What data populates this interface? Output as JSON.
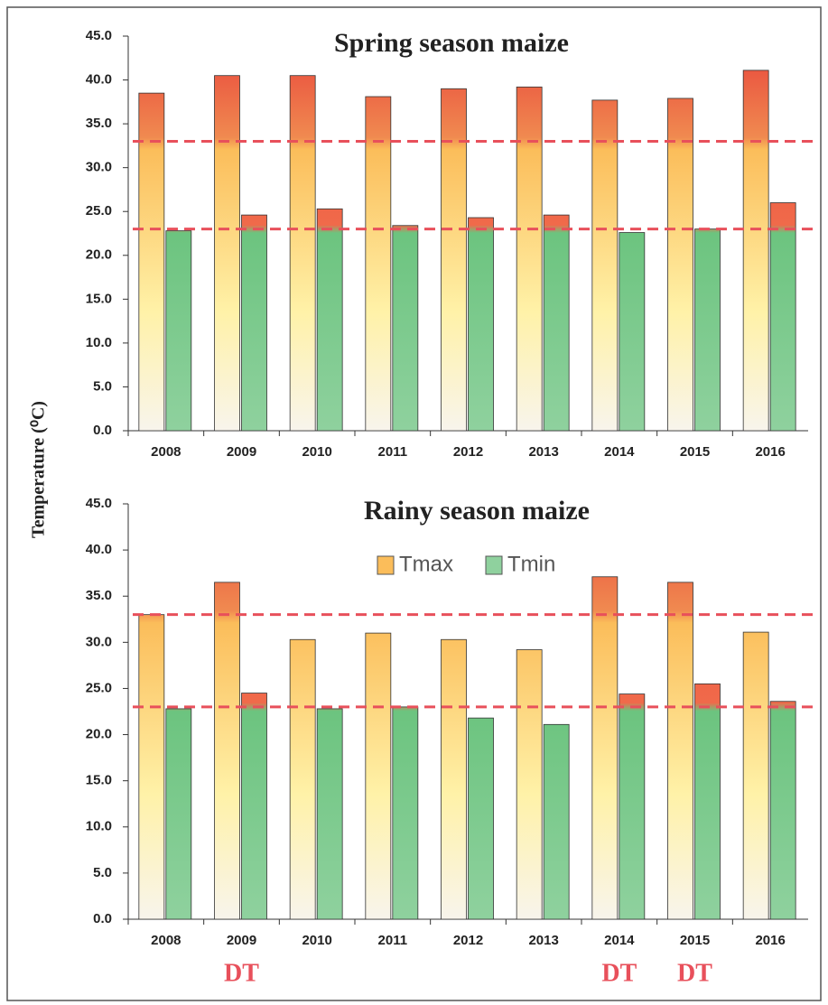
{
  "chart_data": [
    {
      "type": "bar",
      "title": "Spring  season maize",
      "ylabel": "Temperature  (⁰C)",
      "categories": [
        "2008",
        "2009",
        "2010",
        "2011",
        "2012",
        "2013",
        "2014",
        "2015",
        "2016"
      ],
      "series": [
        {
          "color": "#f9b84f",
          "values": [
            38.5,
            40.5,
            40.5,
            38.1,
            39.0,
            39.2,
            37.7,
            37.9,
            41.1
          ]
        },
        {
          "color": "#8fd19e",
          "values": [
            22.8,
            24.6,
            25.3,
            23.4,
            24.3,
            24.6,
            22.6,
            23.0,
            26.0
          ]
        }
      ],
      "ylim": [
        0,
        45
      ],
      "yticks": [
        {
          "value": 0,
          "label": "0.0"
        },
        {
          "value": 5,
          "label": "5.0"
        },
        {
          "value": 10,
          "label": "10.0"
        },
        {
          "value": 15,
          "label": "15.0"
        },
        {
          "value": 20,
          "label": "20.0"
        },
        {
          "value": 25,
          "label": "25.0"
        },
        {
          "value": 30,
          "label": "30.0"
        },
        {
          "value": 35,
          "label": "35.0"
        },
        {
          "value": 40,
          "label": "40.0"
        },
        {
          "value": 45,
          "label": "45.0"
        }
      ],
      "reference_lines": [
        33,
        23
      ],
      "reference_color": "#e8505b",
      "legend": false
    },
    {
      "type": "bar",
      "title": "Rainy  season maize",
      "categories": [
        "2008",
        "2009",
        "2010",
        "2011",
        "2012",
        "2013",
        "2014",
        "2015",
        "2016"
      ],
      "series": [
        {
          "name": "Tmax",
          "color": "#f9b84f",
          "values": [
            33.0,
            36.5,
            30.3,
            31.0,
            30.3,
            29.2,
            37.1,
            36.5,
            31.1
          ]
        },
        {
          "name": "Tmin",
          "color": "#8fd19e",
          "values": [
            22.8,
            24.5,
            22.8,
            23.0,
            21.8,
            21.1,
            24.4,
            25.5,
            23.6
          ]
        }
      ],
      "ylim": [
        0,
        45
      ],
      "yticks": [
        {
          "value": 0,
          "label": "0.0"
        },
        {
          "value": 5,
          "label": "5.0"
        },
        {
          "value": 10,
          "label": "10.0"
        },
        {
          "value": 15,
          "label": "15.0"
        },
        {
          "value": 20,
          "label": "20.0"
        },
        {
          "value": 25,
          "label": "25.0"
        },
        {
          "value": 30,
          "label": "30.0"
        },
        {
          "value": 35,
          "label": "35.0"
        },
        {
          "value": 40,
          "label": "40.0"
        },
        {
          "value": 45,
          "label": "45.0"
        }
      ],
      "reference_lines": [
        33,
        23
      ],
      "reference_color": "#e8505b",
      "legend": "top",
      "annotations": [
        null,
        "DT",
        null,
        null,
        null,
        null,
        "DT",
        "DT",
        null
      ]
    }
  ]
}
